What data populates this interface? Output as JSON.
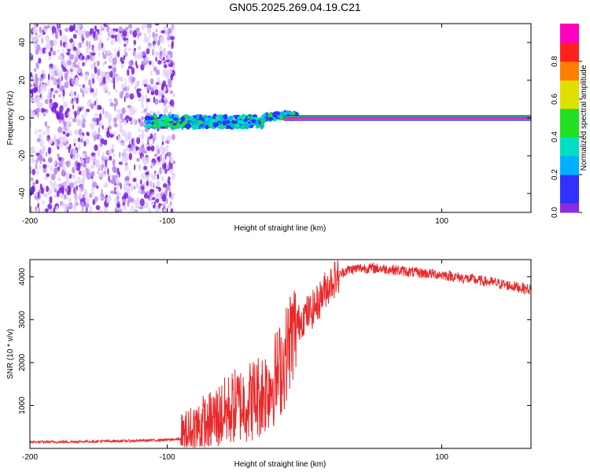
{
  "page": {
    "title": "GN05.2025.269.04.19.C21"
  },
  "chart_data": [
    {
      "type": "heatmap",
      "id": "spectrogram",
      "title": "GN05.2025.269.04.19.C21",
      "xlabel": "Height of straight line (km)",
      "ylabel": "Frequency (Hz)",
      "xlim": [
        -200,
        165
      ],
      "ylim": [
        -50,
        50
      ],
      "x_ticks": [
        -200,
        -100,
        100
      ],
      "y_ticks": [
        -40,
        -20,
        0,
        20,
        40
      ],
      "colorbar": {
        "label": "Normalized spectral amplitude",
        "range": [
          0,
          1
        ],
        "ticks": [
          "0.0",
          "0.2",
          "0.4",
          "0.6",
          "0.8"
        ],
        "tick_values": [
          0.0,
          0.2,
          0.4,
          0.6,
          0.8
        ]
      },
      "features": [
        {
          "name": "broadband noise",
          "x_range": [
            -200,
            -95
          ],
          "freq_range": [
            -50,
            50
          ],
          "amplitude": 0.05
        },
        {
          "name": "transition cluster",
          "x_range": [
            -115,
            -5
          ],
          "freq_center": [
            -3,
            3
          ],
          "amplitude_peak": 0.45
        },
        {
          "name": "carrier line",
          "x_range": [
            -15,
            165
          ],
          "freq": 0,
          "amplitude": 0.95
        }
      ]
    },
    {
      "type": "line",
      "id": "snr",
      "xlabel": "Height of straight line (km)",
      "ylabel": "SNR (10 * v/v)",
      "xlim": [
        -200,
        165
      ],
      "ylim": [
        0,
        4400
      ],
      "x_ticks": [
        -200,
        -100,
        100
      ],
      "y_ticks": [
        1000,
        2000,
        3000,
        4000
      ],
      "color": "#e8282a",
      "series": [
        {
          "name": "SNR",
          "x": [
            -200,
            -180,
            -160,
            -140,
            -120,
            -100,
            -90,
            -85,
            -80,
            -70,
            -60,
            -50,
            -40,
            -30,
            -20,
            -15,
            -10,
            -5,
            0,
            5,
            10,
            15,
            20,
            30,
            40,
            50,
            60,
            80,
            100,
            120,
            140,
            165
          ],
          "values": [
            150,
            150,
            160,
            170,
            180,
            200,
            220,
            300,
            450,
            600,
            800,
            1000,
            1100,
            1300,
            1700,
            2000,
            2600,
            2900,
            3100,
            3200,
            3400,
            3700,
            3900,
            4150,
            4200,
            4200,
            4180,
            4100,
            4050,
            3950,
            3850,
            3700
          ]
        }
      ]
    }
  ]
}
